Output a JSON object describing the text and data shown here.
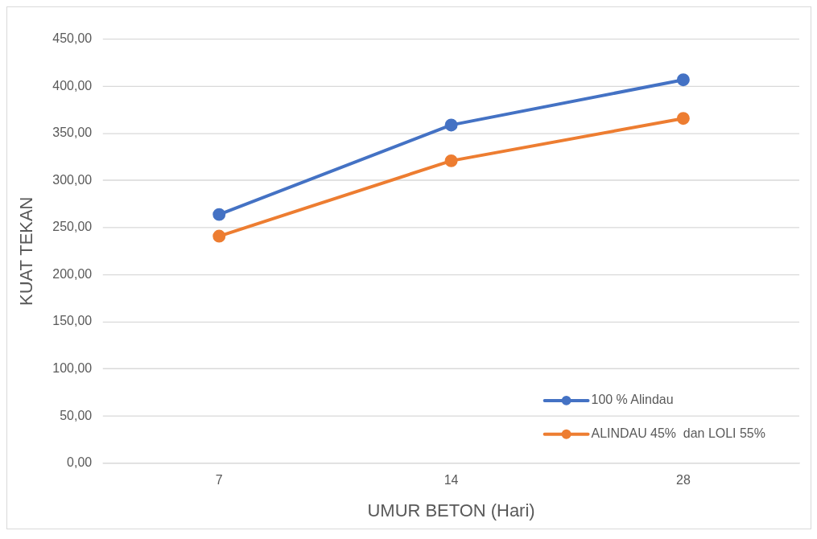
{
  "chart_data": {
    "type": "line",
    "xlabel": "UMUR BETON (Hari)",
    "ylabel": "KUAT TEKAN",
    "categories": [
      "7",
      "14",
      "28"
    ],
    "series": [
      {
        "name": "100 % Alindau",
        "color": "#4472c4",
        "values": [
          264,
          359,
          407
        ]
      },
      {
        "name": "ALINDAU 45%  dan LOLI 55%",
        "color": "#ed7d31",
        "values": [
          241,
          321,
          366
        ]
      }
    ],
    "ylim": [
      0,
      450
    ],
    "yticks": [
      {
        "value": 0,
        "label": "0,00"
      },
      {
        "value": 50,
        "label": "50,00"
      },
      {
        "value": 100,
        "label": "100,00"
      },
      {
        "value": 150,
        "label": "150,00"
      },
      {
        "value": 200,
        "label": "200,00"
      },
      {
        "value": 250,
        "label": "250,00"
      },
      {
        "value": 300,
        "label": "300,00"
      },
      {
        "value": 350,
        "label": "350,00"
      },
      {
        "value": 400,
        "label": "400,00"
      },
      {
        "value": 450,
        "label": "450,00"
      }
    ],
    "grid": "y",
    "legend": "bottom right",
    "marker": "circle",
    "line_style": "solid"
  }
}
